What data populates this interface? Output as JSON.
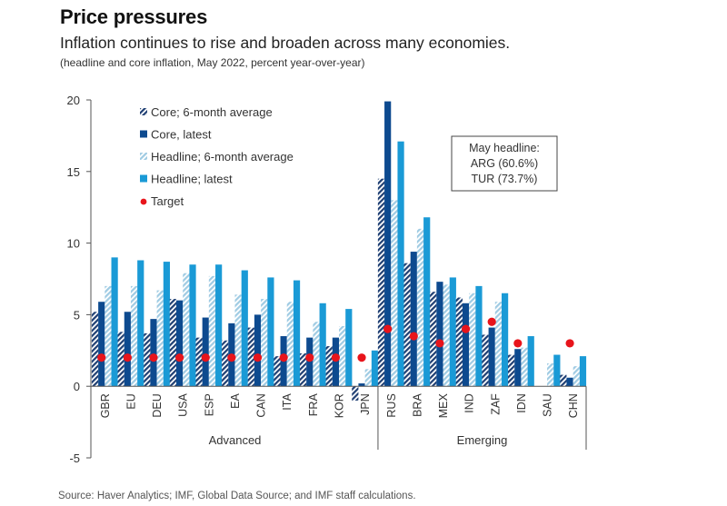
{
  "title": "Price pressures",
  "subtitle": "Inflation continues to rise and broaden across many economies.",
  "note": "(headline and core inflation, May 2022, percent year-over-year)",
  "source": "Source: Haver Analytics; IMF, Global Data Source; and IMF staff calculations.",
  "colors": {
    "core_6m": "#1f3f73",
    "core_latest": "#0d4a8f",
    "headline_6m": "#9fcbe3",
    "headline_latest": "#1a9ad6",
    "target": "#e8141b",
    "axis": "#555555"
  },
  "chart_data": {
    "type": "bar",
    "title": "Price pressures",
    "xlabel": "",
    "ylabel": "",
    "ylim": [
      -5,
      20
    ],
    "yticks": [
      -5,
      0,
      5,
      10,
      15,
      20
    ],
    "grid": false,
    "legend_position": "top-left",
    "categories": [
      "GBR",
      "EU",
      "DEU",
      "USA",
      "ESP",
      "EA",
      "CAN",
      "ITA",
      "FRA",
      "KOR",
      "JPN",
      "RUS",
      "BRA",
      "MEX",
      "IND",
      "ZAF",
      "IDN",
      "SAU",
      "CHN"
    ],
    "groups": [
      {
        "name": "Advanced",
        "categories": [
          "GBR",
          "EU",
          "DEU",
          "USA",
          "ESP",
          "EA",
          "CAN",
          "ITA",
          "FRA",
          "KOR",
          "JPN"
        ]
      },
      {
        "name": "Emerging",
        "categories": [
          "RUS",
          "BRA",
          "MEX",
          "IND",
          "ZAF",
          "IDN",
          "SAU",
          "CHN"
        ]
      }
    ],
    "series": [
      {
        "name": "Core; 6-month average",
        "key": "core_6m",
        "style": "hatched-dark",
        "values": [
          5.2,
          3.8,
          3.7,
          6.1,
          3.4,
          3.2,
          4.1,
          2.1,
          2.3,
          2.8,
          -1.0,
          14.5,
          8.6,
          6.6,
          6.2,
          3.6,
          2.2,
          null,
          0.8
        ]
      },
      {
        "name": "Core, latest",
        "key": "core_latest",
        "style": "solid-dark",
        "values": [
          5.9,
          5.2,
          4.7,
          6.0,
          4.8,
          4.4,
          5.0,
          3.5,
          3.4,
          3.4,
          0.2,
          19.9,
          9.4,
          7.3,
          5.8,
          4.1,
          2.6,
          null,
          0.6
        ]
      },
      {
        "name": "Headline; 6-month average",
        "key": "headline_6m",
        "style": "hatched-light",
        "values": [
          7.0,
          7.0,
          6.7,
          7.9,
          7.7,
          6.4,
          6.1,
          5.9,
          4.5,
          4.2,
          1.2,
          13.0,
          11.0,
          7.1,
          6.5,
          5.9,
          2.7,
          1.6,
          1.4
        ]
      },
      {
        "name": "Headline; latest",
        "key": "headline_latest",
        "style": "solid-light",
        "values": [
          9.0,
          8.8,
          8.7,
          8.5,
          8.5,
          8.1,
          7.6,
          7.4,
          5.8,
          5.4,
          2.5,
          17.1,
          11.8,
          7.6,
          7.0,
          6.5,
          3.5,
          2.2,
          2.1
        ]
      },
      {
        "name": "Target",
        "key": "target",
        "style": "dot",
        "values": [
          2,
          2,
          2,
          2,
          2,
          2,
          2,
          2,
          2,
          2,
          2,
          4,
          3.5,
          3,
          4,
          4.5,
          3,
          null,
          3
        ]
      }
    ],
    "annotation": {
      "lines": [
        "May headline:",
        "ARG (60.6%)",
        "TUR (73.7%)"
      ]
    }
  }
}
